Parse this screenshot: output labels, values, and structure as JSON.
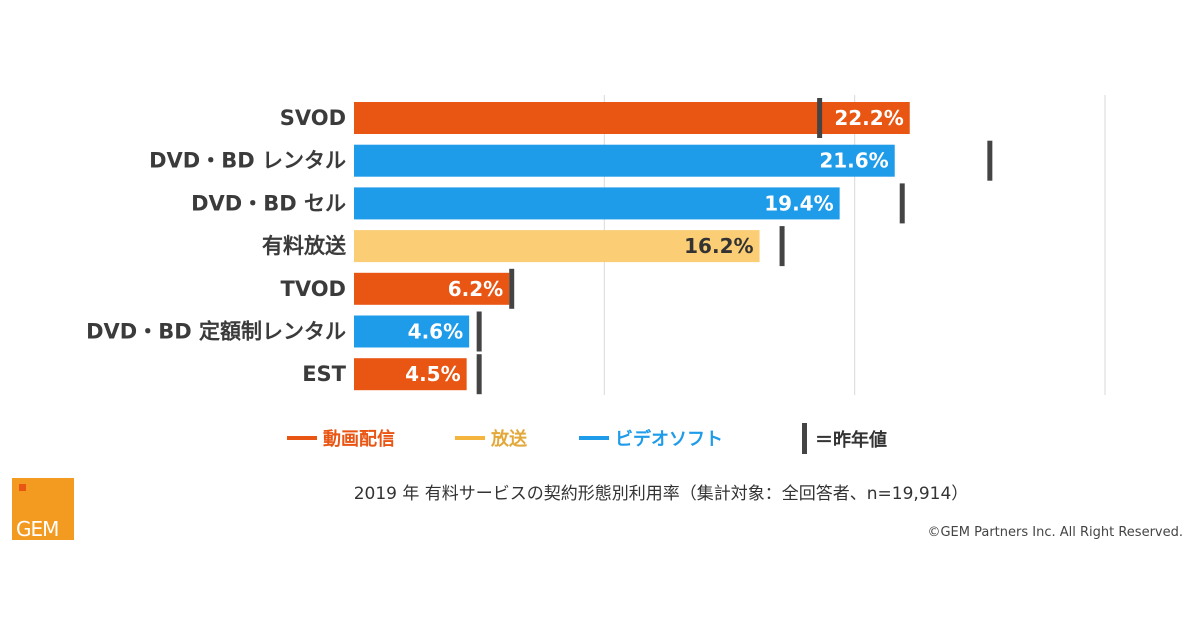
{
  "chart_data": {
    "type": "bar",
    "orientation": "horizontal",
    "categories": [
      "SVOD",
      "DVD・BD レンタル",
      "DVD・BD セル",
      "有料放送",
      "TVOD",
      "DVD・BD 定額制レンタル",
      "EST"
    ],
    "values": [
      22.2,
      21.6,
      19.4,
      16.2,
      6.2,
      4.6,
      4.5
    ],
    "value_labels": [
      "22.2%",
      "21.6%",
      "19.4%",
      "16.2%",
      "6.2%",
      "4.6%",
      "4.5%"
    ],
    "groups": [
      "動画配信",
      "ビデオソフト",
      "ビデオソフト",
      "放送",
      "動画配信",
      "ビデオソフト",
      "動画配信"
    ],
    "previous_year_values": [
      18.6,
      25.4,
      21.9,
      17.1,
      6.3,
      5.0,
      5.0
    ],
    "xlim": [
      0,
      30
    ],
    "gridlines": [
      0,
      10,
      20,
      30
    ],
    "grid": true,
    "legend_position": "bottom",
    "legend": [
      {
        "label": "動画配信",
        "color": "#e95513"
      },
      {
        "label": "放送",
        "color": "#f4b53f"
      },
      {
        "label": "ビデオソフト",
        "color": "#1e9be9"
      }
    ],
    "marker_legend": "＝昨年値",
    "caption": "2019 年 有料サービスの契約形態別利用率（集計対象：全回答者、n=19,914）"
  },
  "colors": {
    "動画配信": "#e95513",
    "放送": "#fbcd74",
    "ビデオソフト": "#1e9be9",
    "marker": "#444444",
    "grid": "#d9d9d9",
    "logo": "#f39a21",
    "logo_accent": "#e95513"
  },
  "label_colors": {
    "動画配信": "#ffffff",
    "放送": "#333333",
    "ビデオソフト": "#ffffff"
  },
  "legend_text_colors": {
    "動画配信": "#e95513",
    "放送": "#e3a83a",
    "ビデオソフト": "#1e9be9"
  },
  "logo": {
    "text": "GEM"
  },
  "copyright": "©GEM Partners Inc. All Right Reserved."
}
